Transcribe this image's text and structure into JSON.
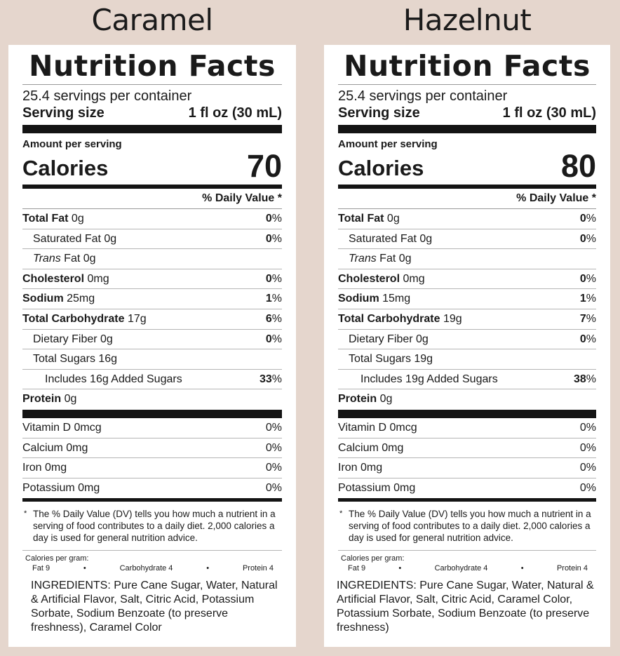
{
  "labels": [
    {
      "flavor": "Caramel",
      "title": "Nutrition Facts",
      "servings": "25.4 servings per container",
      "serving_size_label": "Serving size",
      "serving_size_value": "1 fl oz (30 mL)",
      "amount_per_serving": "Amount per serving",
      "calories_label": "Calories",
      "calories_value": "70",
      "dv_header": "% Daily Value *",
      "nutrients": [
        {
          "bold": "Total Fat",
          "name": " 0g",
          "pct": "0",
          "unit": "%"
        },
        {
          "bold": "",
          "name": "Saturated Fat 0g",
          "pct": "0",
          "unit": "%"
        },
        {
          "italic": "Trans",
          "name": " Fat 0g",
          "pct": "",
          "unit": ""
        },
        {
          "bold": "Cholesterol",
          "name": " 0mg",
          "pct": "0",
          "unit": "%"
        },
        {
          "bold": "Sodium",
          "name": " 25mg",
          "pct": "1",
          "unit": "%"
        },
        {
          "bold": "Total Carbohydrate",
          "name": " 17g",
          "pct": "6",
          "unit": "%"
        },
        {
          "bold": "",
          "name": "Dietary Fiber 0g",
          "pct": "0",
          "unit": "%"
        },
        {
          "bold": "",
          "name": "Total Sugars 16g",
          "pct": "",
          "unit": ""
        },
        {
          "bold": "",
          "name": "Includes 16g Added Sugars",
          "pct": "33",
          "unit": "%"
        },
        {
          "bold": "Protein",
          "name": " 0g",
          "pct": "",
          "unit": ""
        }
      ],
      "vitamins": [
        {
          "name": "Vitamin D 0mcg",
          "pct": "0%"
        },
        {
          "name": "Calcium 0mg",
          "pct": "0%"
        },
        {
          "name": "Iron 0mg",
          "pct": "0%"
        },
        {
          "name": "Potassium 0mg",
          "pct": "0%"
        }
      ],
      "footnote_star": "*",
      "footnote": "The % Daily Value (DV) tells you how much a nutrient in a serving of food contributes to a daily diet. 2,000 calories a day is used for general nutrition advice.",
      "cpg_title": "Calories per gram:",
      "cpg_fat": "Fat 9",
      "cpg_carb": "Carbohydrate 4",
      "cpg_protein": "Protein 4",
      "cpg_sep": "•",
      "ingredients": "INGREDIENTS: Pure Cane Sugar, Water, Natural & Artificial Flavor, Salt, Citric Acid, Potassium Sorbate, Sodium Benzoate (to preserve freshness), Caramel Color"
    },
    {
      "flavor": "Hazelnut",
      "title": "Nutrition Facts",
      "servings": "25.4 servings per container",
      "serving_size_label": "Serving size",
      "serving_size_value": "1 fl oz (30 mL)",
      "amount_per_serving": "Amount per serving",
      "calories_label": "Calories",
      "calories_value": "80",
      "dv_header": "% Daily Value *",
      "nutrients": [
        {
          "bold": "Total Fat",
          "name": " 0g",
          "pct": "0",
          "unit": "%"
        },
        {
          "bold": "",
          "name": "Saturated Fat 0g",
          "pct": "0",
          "unit": "%"
        },
        {
          "italic": "Trans",
          "name": " Fat 0g",
          "pct": "",
          "unit": ""
        },
        {
          "bold": "Cholesterol",
          "name": " 0mg",
          "pct": "0",
          "unit": "%"
        },
        {
          "bold": "Sodium",
          "name": " 15mg",
          "pct": "1",
          "unit": "%"
        },
        {
          "bold": "Total Carbohydrate",
          "name": " 19g",
          "pct": "7",
          "unit": "%"
        },
        {
          "bold": "",
          "name": "Dietary Fiber 0g",
          "pct": "0",
          "unit": "%"
        },
        {
          "bold": "",
          "name": "Total Sugars 19g",
          "pct": "",
          "unit": ""
        },
        {
          "bold": "",
          "name": "Includes 19g Added Sugars",
          "pct": "38",
          "unit": "%"
        },
        {
          "bold": "Protein",
          "name": " 0g",
          "pct": "",
          "unit": ""
        }
      ],
      "vitamins": [
        {
          "name": "Vitamin D 0mcg",
          "pct": "0%"
        },
        {
          "name": "Calcium 0mg",
          "pct": "0%"
        },
        {
          "name": "Iron 0mg",
          "pct": "0%"
        },
        {
          "name": "Potassium 0mg",
          "pct": "0%"
        }
      ],
      "footnote_star": "*",
      "footnote": "The % Daily Value (DV) tells you how much a nutrient in a serving of food contributes to a daily diet. 2,000 calories a day is used for general nutrition advice.",
      "cpg_title": "Calories per gram:",
      "cpg_fat": "Fat 9",
      "cpg_carb": "Carbohydrate 4",
      "cpg_protein": "Protein 4",
      "cpg_sep": "•",
      "ingredients": "INGREDIENTS: Pure Cane Sugar, Water, Natural & Artificial Flavor, Salt, Citric Acid, Caramel Color, Potassium Sorbate, Sodium Benzoate (to preserve freshness)"
    }
  ]
}
